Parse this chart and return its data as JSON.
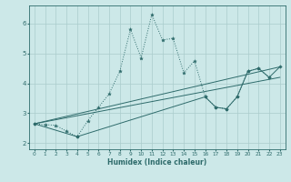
{
  "xlabel": "Humidex (Indice chaleur)",
  "bg_color": "#cce8e8",
  "line_color": "#2e6b6b",
  "grid_color": "#aacccc",
  "xlim": [
    -0.5,
    23.5
  ],
  "ylim": [
    1.8,
    6.6
  ],
  "yticks": [
    2,
    3,
    4,
    5,
    6
  ],
  "xticks": [
    0,
    1,
    2,
    3,
    4,
    5,
    6,
    7,
    8,
    9,
    10,
    11,
    12,
    13,
    14,
    15,
    16,
    17,
    18,
    19,
    20,
    21,
    22,
    23
  ],
  "dotted_x": [
    0,
    1,
    2,
    3,
    4,
    5,
    6,
    7,
    8,
    9,
    10,
    11,
    12,
    13,
    14,
    15,
    16,
    17,
    18,
    19,
    20,
    21,
    22
  ],
  "dotted_y": [
    2.65,
    2.62,
    2.6,
    2.4,
    2.22,
    2.75,
    3.2,
    3.65,
    4.4,
    5.8,
    4.85,
    6.3,
    5.45,
    5.5,
    4.35,
    4.75,
    3.55,
    3.2,
    3.15,
    3.55,
    4.4,
    4.5,
    4.2
  ],
  "trend1_x": [
    0,
    23
  ],
  "trend1_y": [
    2.65,
    4.2
  ],
  "trend2_x": [
    0,
    23
  ],
  "trend2_y": [
    2.65,
    4.55
  ],
  "lower_x": [
    0,
    4,
    16,
    17,
    18,
    19,
    20,
    21,
    22,
    23
  ],
  "lower_y": [
    2.65,
    2.22,
    3.55,
    3.2,
    3.15,
    3.55,
    4.4,
    4.5,
    4.2,
    4.55
  ]
}
